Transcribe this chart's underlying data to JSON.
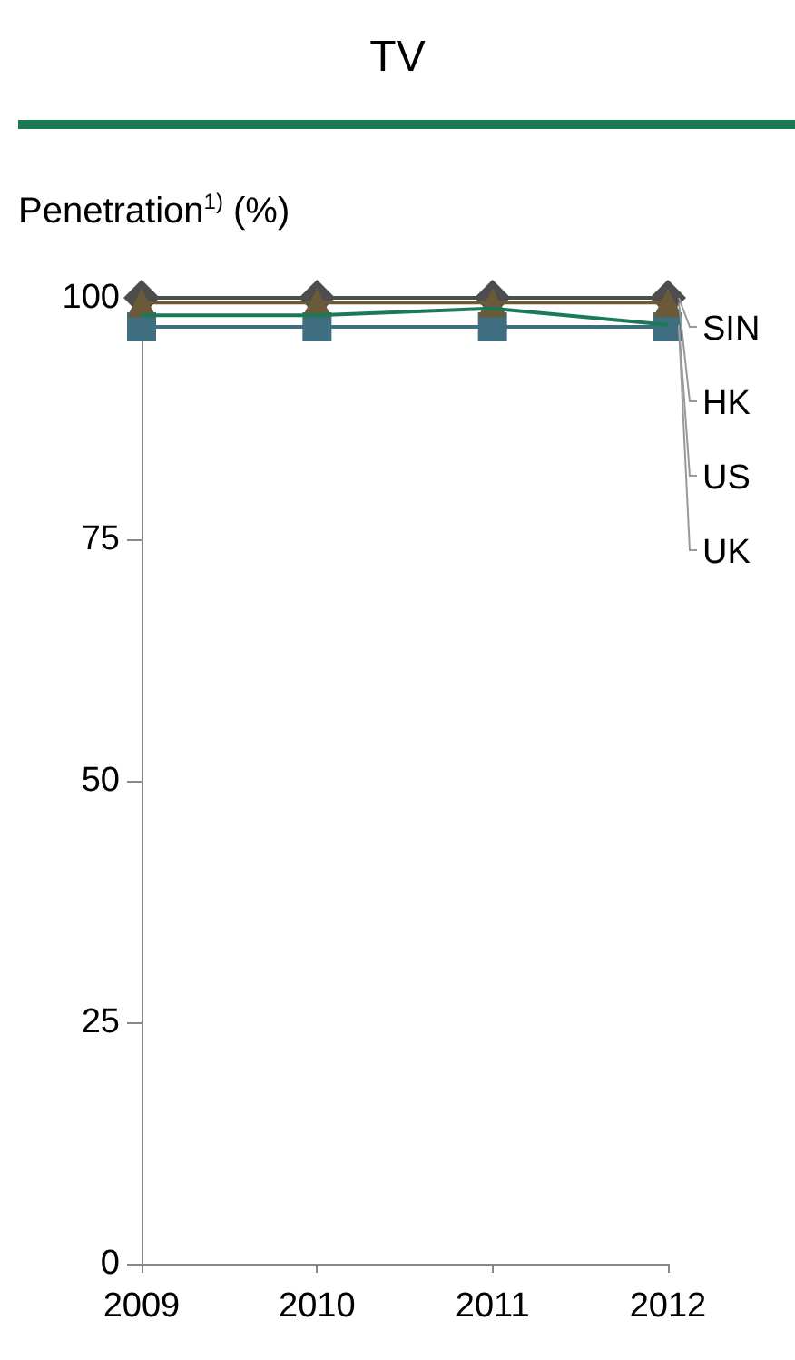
{
  "chart_data": {
    "type": "line",
    "title": "TV",
    "ylabel": "Penetration$^{1)}$ (%)",
    "categories": [
      "2009",
      "2010",
      "2011",
      "2012"
    ],
    "series": [
      {
        "name": "SIN",
        "color": "#4d4d4d",
        "marker": "diamond",
        "values": [
          100,
          100,
          100,
          100
        ]
      },
      {
        "name": "HK",
        "color": "#6b5a3a",
        "marker": "triangle",
        "values": [
          99.5,
          99.5,
          99.5,
          99.5
        ]
      },
      {
        "name": "US",
        "color": "#1a7a55",
        "marker": "none",
        "values": [
          98.2,
          98.2,
          98.9,
          97.2
        ]
      },
      {
        "name": "UK",
        "color": "#3e6e80",
        "marker": "square",
        "values": [
          97,
          97,
          97,
          97
        ]
      }
    ],
    "ylim": [
      0,
      100
    ],
    "yticks": [
      0,
      25,
      50,
      75,
      100
    ],
    "grid": false,
    "legend": false
  }
}
